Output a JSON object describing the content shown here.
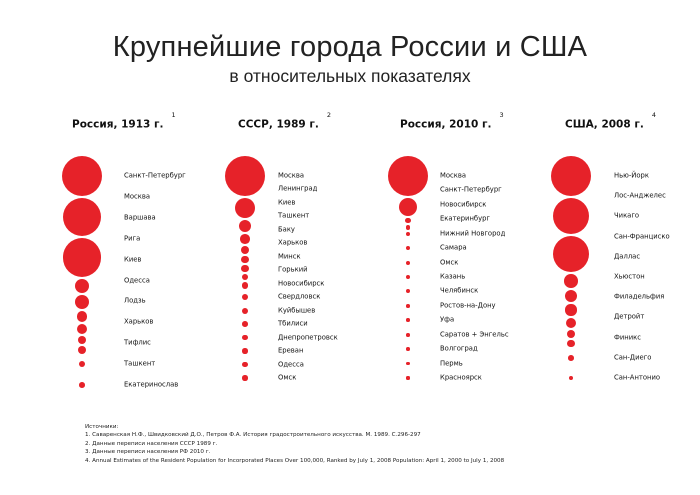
{
  "header": {
    "title": "Крупнейшие города России и США",
    "subtitle": "в относительных показателях"
  },
  "accent_color": "#e62229",
  "columns": [
    {
      "heading": "Россия, 1913 г.",
      "note": "1",
      "cities": [
        {
          "name": "Санкт-Петербург",
          "relative_size": 1.0
        },
        {
          "name": "Москва",
          "relative_size": 0.96
        },
        {
          "name": "Варшава",
          "relative_size": 0.96
        },
        {
          "name": "Рига",
          "relative_size": 0.35
        },
        {
          "name": "Киев",
          "relative_size": 0.35
        },
        {
          "name": "Одесса",
          "relative_size": 0.27
        },
        {
          "name": "Лодзь",
          "relative_size": 0.25
        },
        {
          "name": "Харьков",
          "relative_size": 0.2
        },
        {
          "name": "Тифлис",
          "relative_size": 0.2
        },
        {
          "name": "Ташкент",
          "relative_size": 0.16
        },
        {
          "name": "Екатеринослав",
          "relative_size": 0.14
        }
      ]
    },
    {
      "heading": "СССР, 1989 г.",
      "note": "2",
      "cities": [
        {
          "name": "Москва",
          "relative_size": 1.0
        },
        {
          "name": "Ленинград",
          "relative_size": 0.5
        },
        {
          "name": "Киев",
          "relative_size": 0.3
        },
        {
          "name": "Ташкент",
          "relative_size": 0.24
        },
        {
          "name": "Баку",
          "relative_size": 0.2
        },
        {
          "name": "Харьков",
          "relative_size": 0.18
        },
        {
          "name": "Минск",
          "relative_size": 0.18
        },
        {
          "name": "Горький",
          "relative_size": 0.16
        },
        {
          "name": "Новосибирск",
          "relative_size": 0.16
        },
        {
          "name": "Свердловск",
          "relative_size": 0.15
        },
        {
          "name": "Куйбышев",
          "relative_size": 0.15
        },
        {
          "name": "Тбилиси",
          "relative_size": 0.14
        },
        {
          "name": "Днепропетровск",
          "relative_size": 0.13
        },
        {
          "name": "Ереван",
          "relative_size": 0.13
        },
        {
          "name": "Одесса",
          "relative_size": 0.13
        },
        {
          "name": "Омск",
          "relative_size": 0.13
        }
      ]
    },
    {
      "heading": "Россия, 2010 г.",
      "note": "3",
      "cities": [
        {
          "name": "Москва",
          "relative_size": 1.0
        },
        {
          "name": "Санкт-Петербург",
          "relative_size": 0.45
        },
        {
          "name": "Новосибирск",
          "relative_size": 0.13
        },
        {
          "name": "Екатеринбург",
          "relative_size": 0.12
        },
        {
          "name": "Нижний Новгород",
          "relative_size": 0.11
        },
        {
          "name": "Самара",
          "relative_size": 0.1
        },
        {
          "name": "Омск",
          "relative_size": 0.1
        },
        {
          "name": "Казань",
          "relative_size": 0.1
        },
        {
          "name": "Челябинск",
          "relative_size": 0.1
        },
        {
          "name": "Ростов-на-Дону",
          "relative_size": 0.09
        },
        {
          "name": "Уфа",
          "relative_size": 0.09
        },
        {
          "name": "Саратов + Энгельс",
          "relative_size": 0.09
        },
        {
          "name": "Волгоград",
          "relative_size": 0.09
        },
        {
          "name": "Пермь",
          "relative_size": 0.09
        },
        {
          "name": "Красноярск",
          "relative_size": 0.08
        }
      ]
    },
    {
      "heading": "США, 2008 г.",
      "note": "4",
      "cities": [
        {
          "name": "Нью-Йорк",
          "relative_size": 1.0
        },
        {
          "name": "Лос-Анджелес",
          "relative_size": 0.9
        },
        {
          "name": "Чикаго",
          "relative_size": 0.9
        },
        {
          "name": "Сан-Франциско",
          "relative_size": 0.34
        },
        {
          "name": "Даллас",
          "relative_size": 0.32
        },
        {
          "name": "Хьюстон",
          "relative_size": 0.28
        },
        {
          "name": "Филадельфия",
          "relative_size": 0.25
        },
        {
          "name": "Детройт",
          "relative_size": 0.2
        },
        {
          "name": "Финикс",
          "relative_size": 0.18
        },
        {
          "name": "Сан-Диего",
          "relative_size": 0.14
        },
        {
          "name": "Сан-Антонио",
          "relative_size": 0.12
        }
      ]
    }
  ],
  "sources": {
    "heading": "Источники:",
    "items": [
      "1. Саваренская Н.Ф., Швидковский Д.О., Петров Ф.А. История градостроительного искусства. М. 1989. С.296-297",
      "2. Данные переписи населения СССР 1989 г.",
      "3. Данные переписи населения РФ 2010 г.",
      "4. Annual Estimates of the Resident Population for Incorporated Places Over 100,000, Ranked by July 1, 2008 Population: April 1, 2000 to July 1, 2008"
    ]
  }
}
